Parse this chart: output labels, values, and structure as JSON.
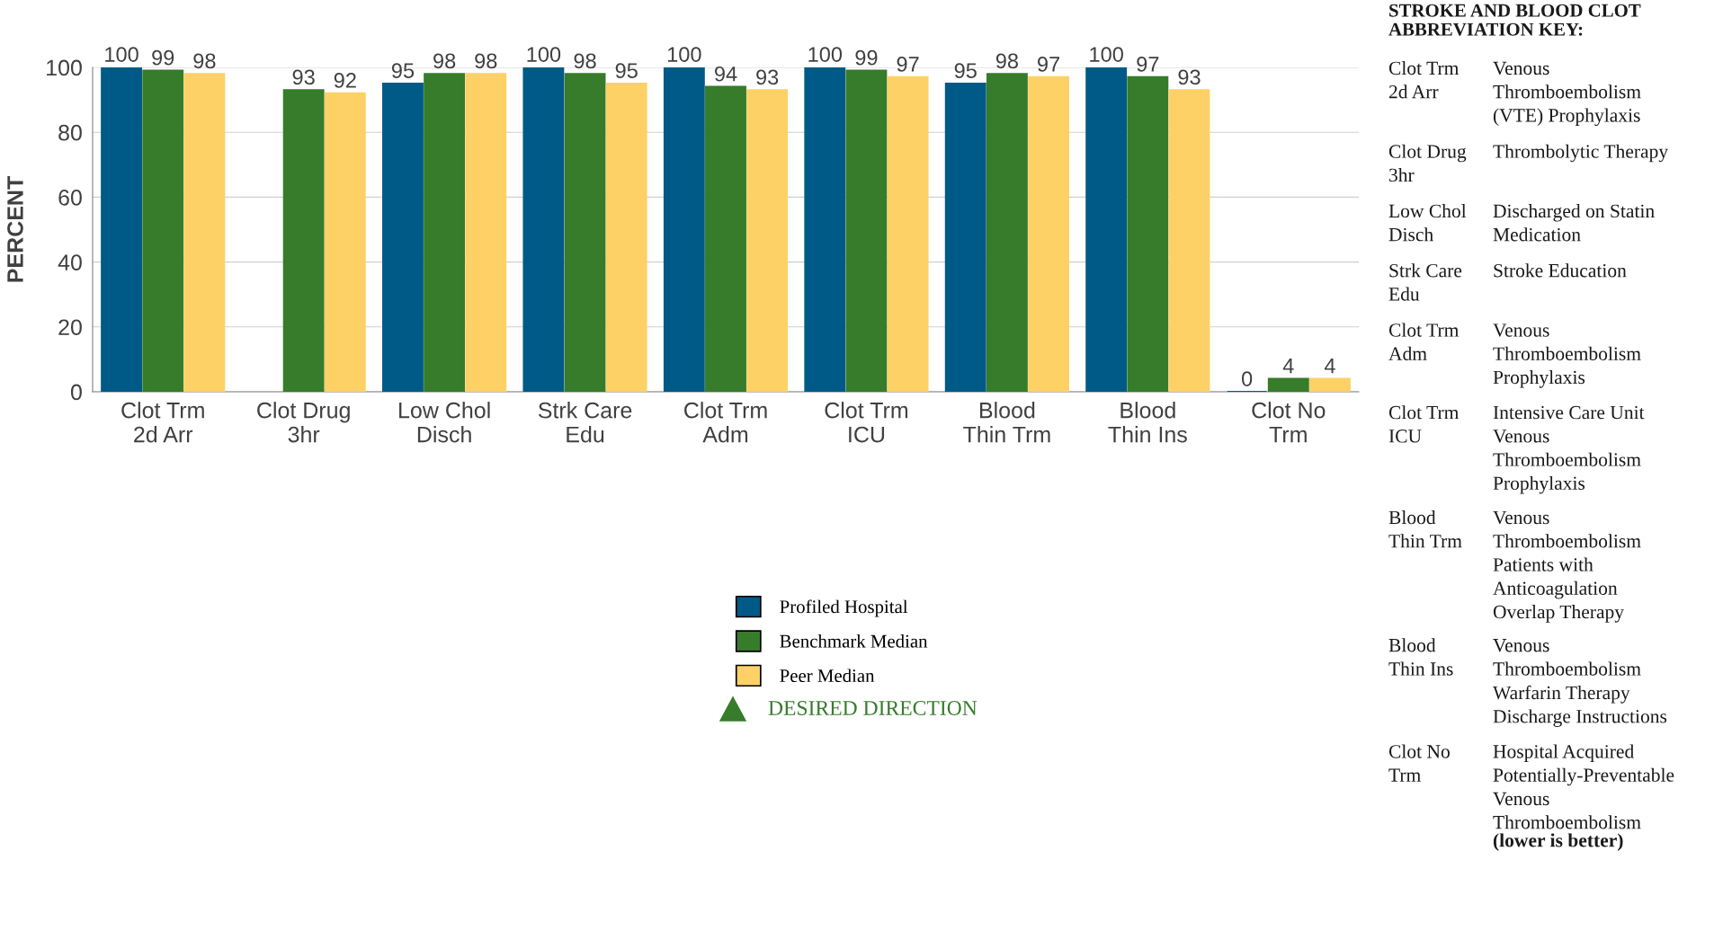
{
  "chart_data": {
    "type": "bar",
    "ylabel": "PERCENT",
    "categories": [
      "Clot Trm\n2d Arr",
      "Clot Drug\n3hr",
      "Low Chol\nDisch",
      "Strk Care\nEdu",
      "Clot Trm\nAdm",
      "Clot Trm\nICU",
      "Blood\nThin Trm",
      "Blood\nThin Ins",
      "Clot No\nTrm"
    ],
    "series": [
      {
        "name": "Profiled Hospital",
        "color": "#005a87",
        "values": [
          100,
          null,
          95,
          100,
          100,
          100,
          95,
          100,
          0
        ]
      },
      {
        "name": "Benchmark Median",
        "color": "#367c2b",
        "values": [
          99,
          93,
          98,
          98,
          94,
          99,
          98,
          97,
          4
        ]
      },
      {
        "name": "Peer Median",
        "color": "#fdd166",
        "values": [
          98,
          92,
          98,
          95,
          93,
          97,
          97,
          93,
          4
        ]
      }
    ],
    "ylim": [
      0,
      100
    ],
    "yticks": [
      0,
      20,
      40,
      60,
      80,
      100
    ],
    "grid": "y",
    "legend": "bottom",
    "data_labels": true,
    "annotations": [
      "STROKE AND BLOOD CLOT\nABBREVIATION KEY:",
      "Clot Trm\n2d Arr",
      "Venous\nThromboembolism\n(VTE) Prophylaxis",
      "Clot Drug\n3hr",
      "Thrombolytic Therapy",
      "Low Chol\nDisch",
      "Discharged on Statin\nMedication",
      "Strk Care\nEdu",
      "Stroke Education",
      "Clot Trm\nAdm",
      "Venous\nThromboembolism\nProphylaxis",
      "Clot Trm\nICU",
      "Intensive Care Unit\nVenous\nThromboembolism\nProphylaxis",
      "Blood\nThin Trm",
      "Venous\nThromboembolism\nPatients with\nAnticoagulation\nOverlap Therapy",
      "Blood\nThin Ins",
      "Venous\nThromboembolism\nWarfarin Therapy\nDischarge Instructions",
      "Clot No\nTrm",
      "Hospital Acquired\nPotentially-Preventable\nVenous\nThromboembolism",
      "(lower is better)",
      "DESIRED DIRECTION"
    ]
  }
}
